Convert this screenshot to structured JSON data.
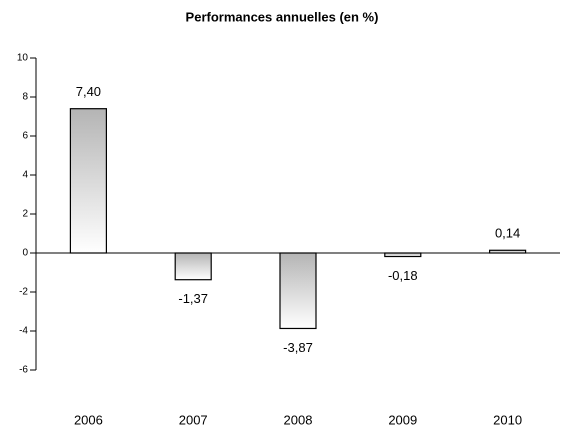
{
  "chart_data": {
    "type": "bar",
    "title": "Performances annuelles (en %)",
    "categories": [
      "2006",
      "2007",
      "2008",
      "2009",
      "2010"
    ],
    "values": [
      7.4,
      -1.37,
      -3.87,
      -0.18,
      0.14
    ],
    "value_labels": [
      "7,40",
      "-1,37",
      "-3,87",
      "-0,18",
      "0,14"
    ],
    "color": "#b4b4b4",
    "ylim": [
      -6,
      10
    ],
    "yticks": [
      10,
      8,
      6,
      4,
      2,
      0,
      -2,
      -4,
      -6
    ]
  }
}
